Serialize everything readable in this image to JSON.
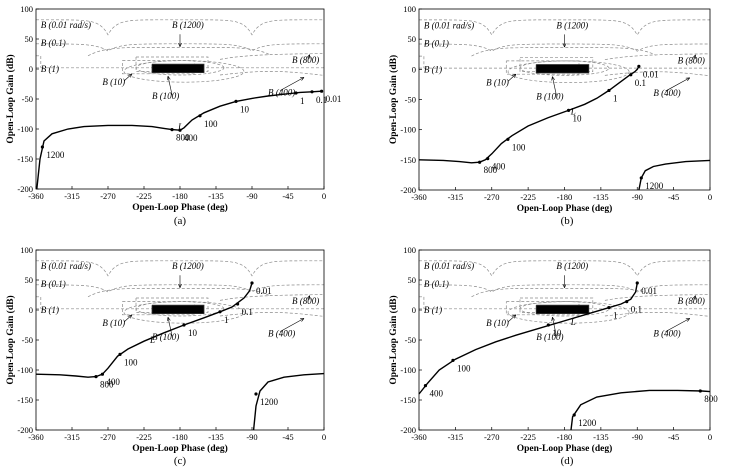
{
  "figure": {
    "xlabel": "Open-Loop Phase (deg)",
    "ylabel": "Open-Loop Gain (dB)"
  },
  "chart_data": [
    {
      "type": "line",
      "caption": "(a)",
      "xlabel": "Open-Loop Phase (deg)",
      "ylabel": "Open-Loop Gain (dB)",
      "xlim": [
        -360,
        0
      ],
      "ylim": [
        -200,
        100
      ],
      "xticks": [
        "-360",
        "-315",
        "-270",
        "-225",
        "-180",
        "-135",
        "-90",
        "-45",
        "0"
      ],
      "yticks": [
        "100",
        "50",
        "0",
        "-50",
        "-100",
        "-150",
        "-200"
      ],
      "bound_labels": {
        "b001": "B (0.01 rad/s)",
        "b01": "B (0.1)",
        "b1": "B (1)",
        "b10": "B (10)",
        "b100": "B (100)",
        "b400": "B (400)",
        "b800": "B (800)",
        "b1200": "B (1200)"
      },
      "loop_label": "L",
      "loop": [
        [
          -359,
          -200
        ],
        [
          -355,
          -150
        ],
        [
          -350,
          -120
        ],
        [
          -340,
          -108
        ],
        [
          -320,
          -100
        ],
        [
          -300,
          -96
        ],
        [
          -270,
          -94
        ],
        [
          -240,
          -94
        ],
        [
          -215,
          -96
        ],
        [
          -200,
          -99
        ],
        [
          -190,
          -101
        ],
        [
          -180,
          -102
        ],
        [
          -175,
          -98
        ],
        [
          -165,
          -85
        ],
        [
          -150,
          -73
        ],
        [
          -130,
          -62
        ],
        [
          -110,
          -54
        ],
        [
          -90,
          -49
        ],
        [
          -70,
          -45
        ],
        [
          -50,
          -42
        ],
        [
          -30,
          -39
        ],
        [
          -15,
          -38
        ],
        [
          -3,
          -37
        ]
      ],
      "freq_points": [
        {
          "label": "1200",
          "x": -352,
          "y": -130
        },
        {
          "label": "800",
          "x": -190,
          "y": -101
        },
        {
          "label": "400",
          "x": -180,
          "y": -102
        },
        {
          "label": "100",
          "x": -155,
          "y": -78
        },
        {
          "label": "10",
          "x": -110,
          "y": -54
        },
        {
          "label": "1",
          "x": -35,
          "y": -40
        },
        {
          "label": "0.1",
          "x": -15,
          "y": -38
        },
        {
          "label": "0.01",
          "x": -3,
          "y": -37
        }
      ]
    },
    {
      "type": "line",
      "caption": "(b)",
      "xlabel": "Open-Loop Phase (deg)",
      "ylabel": "Open-Loop Gain (dB)",
      "xlim": [
        -360,
        0
      ],
      "ylim": [
        -200,
        100
      ],
      "xticks": [
        "-360",
        "-315",
        "-270",
        "-225",
        "-180",
        "-135",
        "-90",
        "-45",
        "0"
      ],
      "yticks": [
        "100",
        "50",
        "0",
        "-50",
        "-100",
        "-150",
        "-200"
      ],
      "bound_labels": {
        "b001": "B (0.01 rad/s)",
        "b01": "B (0.1)",
        "b1": "B (1)",
        "b10": "B (10)",
        "b100": "B (100)",
        "b400": "B (400)",
        "b800": "B (800)",
        "b1200": "B (1200)"
      },
      "loop_label": "L",
      "loop": [
        [
          -360,
          -150
        ],
        [
          -330,
          -151
        ],
        [
          -310,
          -153
        ],
        [
          -295,
          -155
        ],
        [
          -285,
          -154
        ],
        [
          -278,
          -150
        ],
        [
          -270,
          -140
        ],
        [
          -258,
          -123
        ],
        [
          -245,
          -110
        ],
        [
          -225,
          -94
        ],
        [
          -200,
          -80
        ],
        [
          -175,
          -68
        ],
        [
          -155,
          -58
        ],
        [
          -140,
          -48
        ],
        [
          -125,
          -35
        ],
        [
          -110,
          -20
        ],
        [
          -100,
          -10
        ],
        [
          -93,
          -4
        ],
        [
          -90,
          0
        ],
        [
          -88,
          5
        ]
      ],
      "loop2": [
        [
          -88,
          -200
        ],
        [
          -85,
          -180
        ],
        [
          -80,
          -168
        ],
        [
          -70,
          -161
        ],
        [
          -55,
          -157
        ],
        [
          -30,
          -153
        ],
        [
          0,
          -151
        ]
      ],
      "freq_points": [
        {
          "label": "800",
          "x": -285,
          "y": -154
        },
        {
          "label": "400",
          "x": -275,
          "y": -148
        },
        {
          "label": "100",
          "x": -250,
          "y": -116
        },
        {
          "label": "10",
          "x": -175,
          "y": -68
        },
        {
          "label": "1",
          "x": -125,
          "y": -35
        },
        {
          "label": "0.1",
          "x": -98,
          "y": -9
        },
        {
          "label": "0.01",
          "x": -88,
          "y": 5
        },
        {
          "label": "1200",
          "x": -85,
          "y": -180
        }
      ]
    },
    {
      "type": "line",
      "caption": "(c)",
      "xlabel": "Open-Loop Phase (deg)",
      "ylabel": "Open-Loop Gain (dB)",
      "xlim": [
        -360,
        0
      ],
      "ylim": [
        -200,
        100
      ],
      "xticks": [
        "-360",
        "-315",
        "-270",
        "-225",
        "-180",
        "-135",
        "-90",
        "-45",
        "0"
      ],
      "yticks": [
        "100",
        "50",
        "0",
        "-50",
        "-100",
        "-150",
        "-200"
      ],
      "bound_labels": {
        "b001": "B (0.01 rad/s)",
        "b01": "B (0.1)",
        "b1": "B (1)",
        "b10": "B (10)",
        "b100": "B (100)",
        "b400": "B (400)",
        "b800": "B (800)",
        "b1200": "B (1200)"
      },
      "loop_label": "L",
      "loop": [
        [
          -360,
          -107
        ],
        [
          -330,
          -108
        ],
        [
          -310,
          -110
        ],
        [
          -295,
          -112
        ],
        [
          -285,
          -111
        ],
        [
          -277,
          -107
        ],
        [
          -270,
          -97
        ],
        [
          -258,
          -77
        ],
        [
          -245,
          -65
        ],
        [
          -225,
          -52
        ],
        [
          -200,
          -38
        ],
        [
          -175,
          -25
        ],
        [
          -150,
          -13
        ],
        [
          -130,
          -3
        ],
        [
          -115,
          5
        ],
        [
          -100,
          20
        ],
        [
          -93,
          32
        ],
        [
          -90,
          45
        ]
      ],
      "loop2": [
        [
          -88,
          -200
        ],
        [
          -85,
          -160
        ],
        [
          -80,
          -135
        ],
        [
          -70,
          -120
        ],
        [
          -50,
          -112
        ],
        [
          -25,
          -108
        ],
        [
          0,
          -106
        ]
      ],
      "freq_points": [
        {
          "label": "800",
          "x": -285,
          "y": -111
        },
        {
          "label": "400",
          "x": -277,
          "y": -107
        },
        {
          "label": "100",
          "x": -255,
          "y": -74
        },
        {
          "label": "10",
          "x": -175,
          "y": -25
        },
        {
          "label": "1",
          "x": -130,
          "y": -3
        },
        {
          "label": "0.1",
          "x": -108,
          "y": 10
        },
        {
          "label": "0.01",
          "x": -90,
          "y": 45
        },
        {
          "label": "1200",
          "x": -85,
          "y": -140
        }
      ]
    },
    {
      "type": "line",
      "caption": "(d)",
      "xlabel": "Open-Loop Phase (deg)",
      "ylabel": "Open-Loop Gain (dB)",
      "xlim": [
        -360,
        0
      ],
      "ylim": [
        -200,
        100
      ],
      "xticks": [
        "-360",
        "-315",
        "-270",
        "-225",
        "-180",
        "-135",
        "-90",
        "-45",
        "0"
      ],
      "yticks": [
        "100",
        "50",
        "0",
        "-50",
        "-100",
        "-150",
        "-200"
      ],
      "bound_labels": {
        "b001": "B (0.01 rad/s)",
        "b01": "B (0.1)",
        "b1": "B (1)",
        "b10": "B (10)",
        "b100": "B (100)",
        "b400": "B (400)",
        "b800": "B (800)",
        "b1200": "B (1200)"
      },
      "loop_label": "L",
      "loop": [
        [
          -360,
          -140
        ],
        [
          -350,
          -123
        ],
        [
          -335,
          -100
        ],
        [
          -315,
          -82
        ],
        [
          -290,
          -66
        ],
        [
          -265,
          -53
        ],
        [
          -240,
          -42
        ],
        [
          -215,
          -32
        ],
        [
          -185,
          -20
        ],
        [
          -155,
          -8
        ],
        [
          -130,
          2
        ],
        [
          -110,
          10
        ],
        [
          -98,
          18
        ],
        [
          -92,
          30
        ],
        [
          -90,
          45
        ]
      ],
      "loop2": [
        [
          -172,
          -200
        ],
        [
          -170,
          -178
        ],
        [
          -160,
          -158
        ],
        [
          -140,
          -145
        ],
        [
          -110,
          -138
        ],
        [
          -75,
          -134
        ],
        [
          -40,
          -134
        ],
        [
          -10,
          -135
        ],
        [
          0,
          -136
        ]
      ],
      "freq_points": [
        {
          "label": "400",
          "x": -352,
          "y": -126
        },
        {
          "label": "100",
          "x": -318,
          "y": -84
        },
        {
          "label": "10",
          "x": -200,
          "y": -25
        },
        {
          "label": "1",
          "x": -125,
          "y": 4
        },
        {
          "label": "0.1",
          "x": -103,
          "y": 14
        },
        {
          "label": "0.01",
          "x": -90,
          "y": 45
        },
        {
          "label": "1200",
          "x": -168,
          "y": -175
        },
        {
          "label": "800",
          "x": -12,
          "y": -135
        }
      ]
    }
  ]
}
